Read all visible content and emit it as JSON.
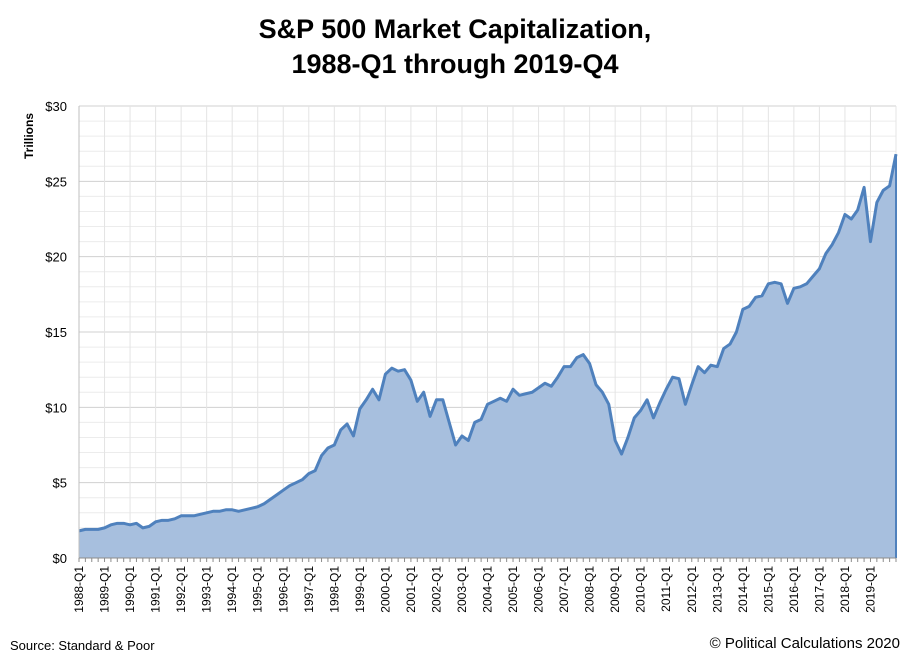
{
  "chart_data": {
    "type": "area",
    "title": "S&P 500 Market Capitalization,",
    "subtitle": "1988-Q1 through 2019-Q4",
    "xlabel": "",
    "ylabel": "Trillions",
    "ylim": [
      0,
      30
    ],
    "grid": true,
    "legend": "none",
    "y_ticks": [
      {
        "value": 0,
        "label": "$0"
      },
      {
        "value": 5,
        "label": "$5"
      },
      {
        "value": 10,
        "label": "$10"
      },
      {
        "value": 15,
        "label": "$15"
      },
      {
        "value": 20,
        "label": "$20"
      },
      {
        "value": 25,
        "label": "$25"
      },
      {
        "value": 30,
        "label": "$30"
      }
    ],
    "x_tick_labels": [
      "1988-Q1",
      "1989-Q1",
      "1990-Q1",
      "1991-Q1",
      "1992-Q1",
      "1993-Q1",
      "1994-Q1",
      "1995-Q1",
      "1996-Q1",
      "1997-Q1",
      "1998-Q1",
      "1999-Q1",
      "2000-Q1",
      "2001-Q1",
      "2002-Q1",
      "2003-Q1",
      "2004-Q1",
      "2005-Q1",
      "2006-Q1",
      "2007-Q1",
      "2008-Q1",
      "2009-Q1",
      "2010-Q1",
      "2011-Q1",
      "2012-Q1",
      "2013-Q1",
      "2014-Q1",
      "2015-Q1",
      "2016-Q1",
      "2017-Q1",
      "2018-Q1",
      "2019-Q1"
    ],
    "series": [
      {
        "name": "S&P 500 Market Capitalization",
        "color": "#4f81bd",
        "fill": "#a7bfde",
        "values": [
          1.8,
          1.9,
          1.9,
          1.9,
          2.0,
          2.2,
          2.3,
          2.3,
          2.2,
          2.3,
          2.0,
          2.1,
          2.4,
          2.5,
          2.5,
          2.6,
          2.8,
          2.8,
          2.8,
          2.9,
          3.0,
          3.1,
          3.1,
          3.2,
          3.2,
          3.1,
          3.2,
          3.3,
          3.4,
          3.6,
          3.9,
          4.2,
          4.5,
          4.8,
          5.0,
          5.2,
          5.6,
          5.8,
          6.8,
          7.3,
          7.5,
          8.5,
          8.9,
          8.1,
          9.9,
          10.5,
          11.2,
          10.5,
          12.2,
          12.6,
          12.4,
          12.5,
          11.8,
          10.4,
          11.0,
          9.4,
          10.5,
          10.5,
          9.0,
          7.5,
          8.1,
          7.8,
          9.0,
          9.2,
          10.2,
          10.4,
          10.6,
          10.4,
          11.2,
          10.8,
          10.9,
          11.0,
          11.3,
          11.6,
          11.4,
          12.0,
          12.7,
          12.7,
          13.3,
          13.5,
          12.9,
          11.5,
          11.0,
          10.2,
          7.8,
          6.9,
          8.0,
          9.3,
          9.8,
          10.5,
          9.3,
          10.3,
          11.2,
          12.0,
          11.9,
          10.2,
          11.5,
          12.7,
          12.3,
          12.8,
          12.7,
          13.9,
          14.2,
          15.0,
          16.5,
          16.7,
          17.3,
          17.4,
          18.2,
          18.3,
          18.2,
          16.9,
          17.9,
          18.0,
          18.2,
          18.7,
          19.2,
          20.2,
          20.8,
          21.6,
          22.8,
          22.5,
          23.1,
          24.6,
          21.0,
          23.6,
          24.4,
          24.7,
          26.8
        ]
      }
    ]
  },
  "source": "Source:  Standard  &  Poor",
  "copyright": "© Political Calculations 2020"
}
